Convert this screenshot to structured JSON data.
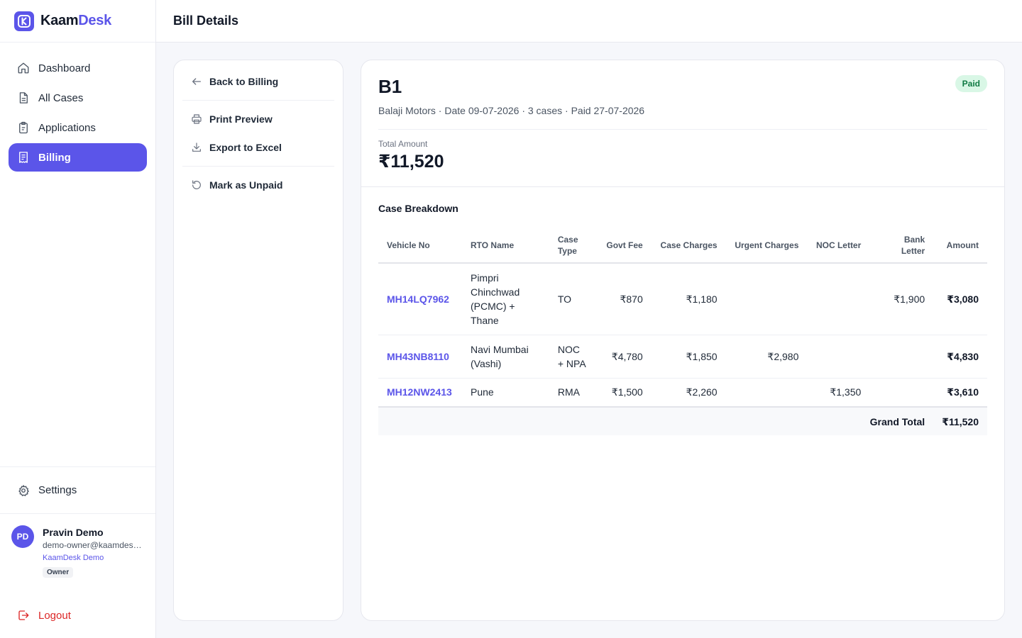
{
  "brand": {
    "name_part1": "Kaam",
    "name_part2": "Desk"
  },
  "sidebar": {
    "items": [
      {
        "label": "Dashboard",
        "icon": "home-icon"
      },
      {
        "label": "All Cases",
        "icon": "document-icon"
      },
      {
        "label": "Applications",
        "icon": "clipboard-icon"
      },
      {
        "label": "Billing",
        "icon": "receipt-icon",
        "active": true
      }
    ],
    "settings_label": "Settings",
    "logout_label": "Logout"
  },
  "user": {
    "initials": "PD",
    "name": "Pravin Demo",
    "email": "demo-owner@kaamdesk.com",
    "org": "KaamDesk Demo",
    "role": "Owner"
  },
  "header": {
    "title": "Bill Details"
  },
  "actions": {
    "back": "Back to Billing",
    "print": "Print Preview",
    "export": "Export to Excel",
    "unpaid": "Mark as Unpaid"
  },
  "bill": {
    "id": "B1",
    "meta": "Balaji Motors · Date 09-07-2026 · 3 cases · Paid 27-07-2026",
    "status": "Paid",
    "total_label": "Total Amount",
    "total_value": "₹11,520"
  },
  "breakdown": {
    "title": "Case Breakdown",
    "columns": {
      "vehicle": "Vehicle No",
      "rto": "RTO Name",
      "case_type_1": "Case",
      "case_type_2": "Type",
      "govt_fee": "Govt Fee",
      "case_charges": "Case Charges",
      "urgent": "Urgent Charges",
      "noc": "NOC Letter",
      "bank": "Bank Letter",
      "amount": "Amount"
    },
    "rows": [
      {
        "vehicle": "MH14LQ7962",
        "rto_1": "Pimpri",
        "rto_2": "Chinchwad",
        "rto_3": "(PCMC) +",
        "rto_4": "Thane",
        "case_type_1": "TO",
        "case_type_2": "",
        "govt_fee": "₹870",
        "case_charges": "₹1,180",
        "urgent": "",
        "noc": "",
        "bank": "₹1,900",
        "amount": "₹3,080"
      },
      {
        "vehicle": "MH43NB8110",
        "rto_1": "Navi Mumbai",
        "rto_2": "(Vashi)",
        "case_type_1": "NOC",
        "case_type_2": "+ NPA",
        "govt_fee": "₹4,780",
        "case_charges": "₹1,850",
        "urgent": "₹2,980",
        "noc": "",
        "bank": "",
        "amount": "₹4,830"
      },
      {
        "vehicle": "MH12NW2413",
        "rto_1": "Pune",
        "case_type_1": "RMA",
        "govt_fee": "₹1,500",
        "case_charges": "₹2,260",
        "urgent": "",
        "noc": "₹1,350",
        "bank": "",
        "amount": "₹3,610"
      }
    ],
    "grand_total_label": "Grand Total",
    "grand_total_value": "₹11,520"
  }
}
